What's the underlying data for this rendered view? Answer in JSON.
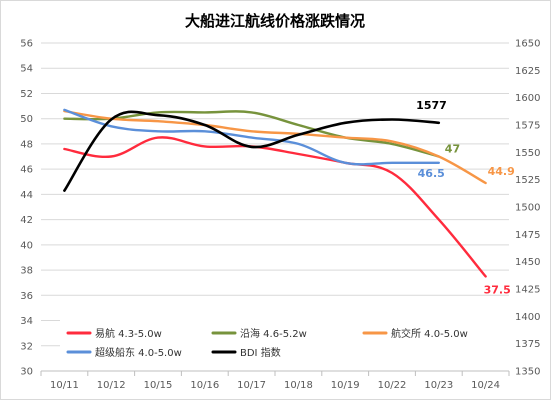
{
  "chart_data": {
    "type": "line",
    "title": "大船进江航线价格涨跌情况",
    "categories": [
      "10/11",
      "10/12",
      "10/15",
      "10/16",
      "10/17",
      "10/18",
      "10/19",
      "10/22",
      "10/23",
      "10/24"
    ],
    "left_axis": {
      "min": 30,
      "max": 56,
      "ticks": [
        "30",
        "32",
        "34",
        "36",
        "38",
        "40",
        "42",
        "44",
        "46",
        "48",
        "50",
        "52",
        "54",
        "56"
      ]
    },
    "right_axis": {
      "min": 1350,
      "max": 1650,
      "ticks": [
        "1350",
        "1375",
        "1400",
        "1425",
        "1450",
        "1475",
        "1500",
        "1525",
        "1550",
        "1575",
        "1600",
        "1625",
        "1650"
      ]
    },
    "grid": true,
    "legend_position": "bottom-left",
    "series": [
      {
        "name": "易航 4.3-5.0w",
        "color": "#ff2b3d",
        "axis": "left",
        "values": [
          47.6,
          47.0,
          48.5,
          47.8,
          47.8,
          47.2,
          46.5,
          45.7,
          42.0,
          37.5
        ],
        "end_label": "37.5"
      },
      {
        "name": "沿海 4.6-5.2w",
        "color": "#77933c",
        "axis": "left",
        "values": [
          50.0,
          50.0,
          50.5,
          50.5,
          50.5,
          49.5,
          48.5,
          48.0,
          47.0,
          null
        ],
        "end_label": "47"
      },
      {
        "name": "航交所 4.0-5.0w",
        "color": "#f79646",
        "axis": "left",
        "values": [
          50.6,
          50.0,
          49.8,
          49.5,
          49.0,
          48.8,
          48.5,
          48.2,
          47.0,
          44.9
        ],
        "end_label": "44.9"
      },
      {
        "name": "超级船东 4.0-5.0w",
        "color": "#5b8fd9",
        "axis": "left",
        "values": [
          50.7,
          49.4,
          49.0,
          49.0,
          48.5,
          48.0,
          46.5,
          46.5,
          46.5,
          null
        ],
        "end_label": "46.5"
      },
      {
        "name": "BDI 指数",
        "color": "#000000",
        "axis": "right",
        "values": [
          1515,
          1580,
          1584,
          1575,
          1555,
          1566,
          1577,
          1580,
          1577,
          null
        ],
        "end_label": "1577"
      }
    ]
  }
}
